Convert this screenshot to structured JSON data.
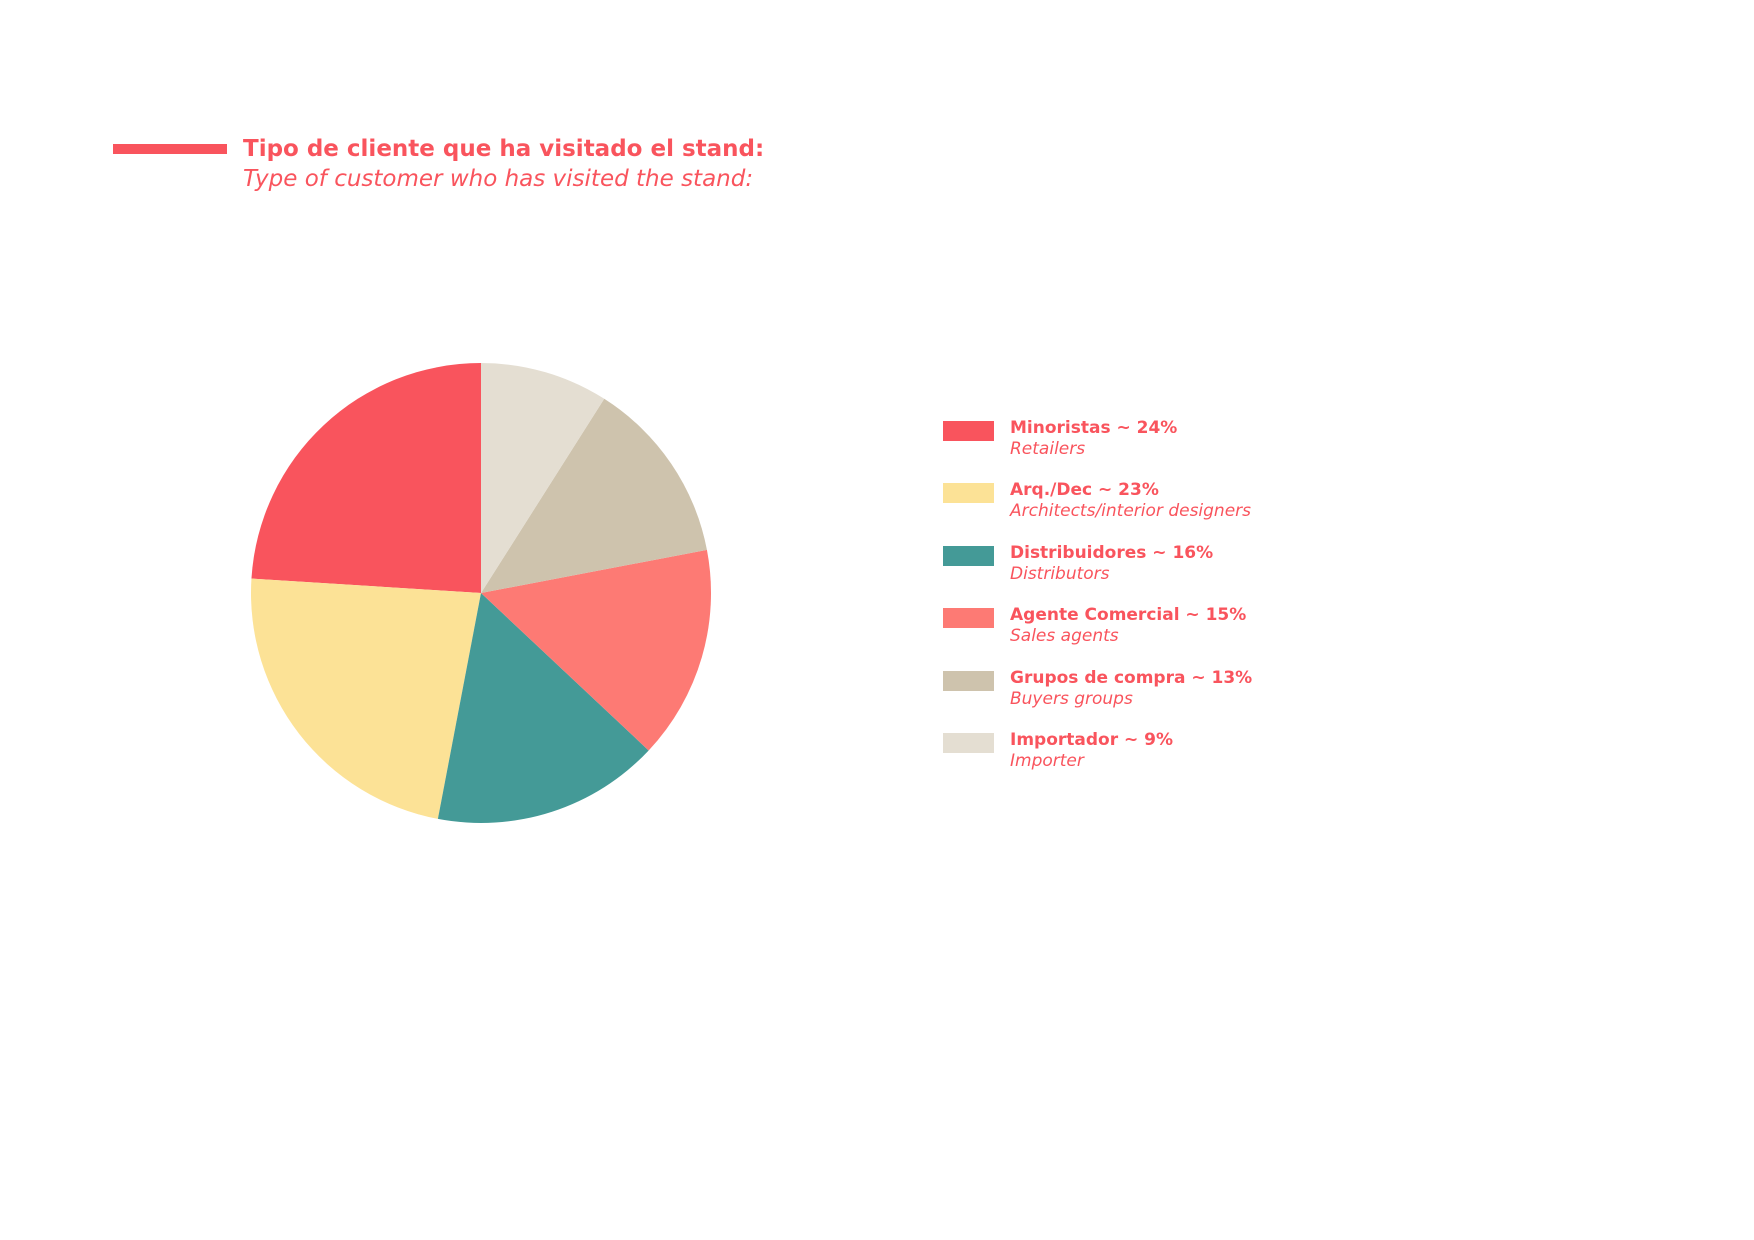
{
  "colors": {
    "accent": "#F9545D",
    "background": "#FFFFFF"
  },
  "header": {
    "title": "Tipo de cliente que ha visitado el stand:",
    "subtitle": "Type of customer who has visited the stand:"
  },
  "chart_data": {
    "type": "pie",
    "title": "Tipo de cliente que ha visitado el stand:",
    "subtitle": "Type of customer who has visited the stand:",
    "legend_position": "right",
    "start_angle_deg": 0,
    "direction": "counterclockwise",
    "slices": [
      {
        "label": "Minoristas ~ 24%",
        "sublabel": "Retailers",
        "value": 24,
        "color": "#F9545D"
      },
      {
        "label": "Arq./Dec ~ 23%",
        "sublabel": "Architects/interior designers",
        "value": 23,
        "color": "#FCE296"
      },
      {
        "label": "Distribuidores ~ 16%",
        "sublabel": "Distributors",
        "value": 16,
        "color": "#449A97"
      },
      {
        "label": "Agente Comercial ~ 15%",
        "sublabel": "Sales agents",
        "value": 15,
        "color": "#FD7A74"
      },
      {
        "label": "Grupos de compra ~ 13%",
        "sublabel": "Buyers groups",
        "value": 13,
        "color": "#CEC3AD"
      },
      {
        "label": "Importador ~ 9%",
        "sublabel": "Importer",
        "value": 9,
        "color": "#E4DED2"
      }
    ]
  }
}
